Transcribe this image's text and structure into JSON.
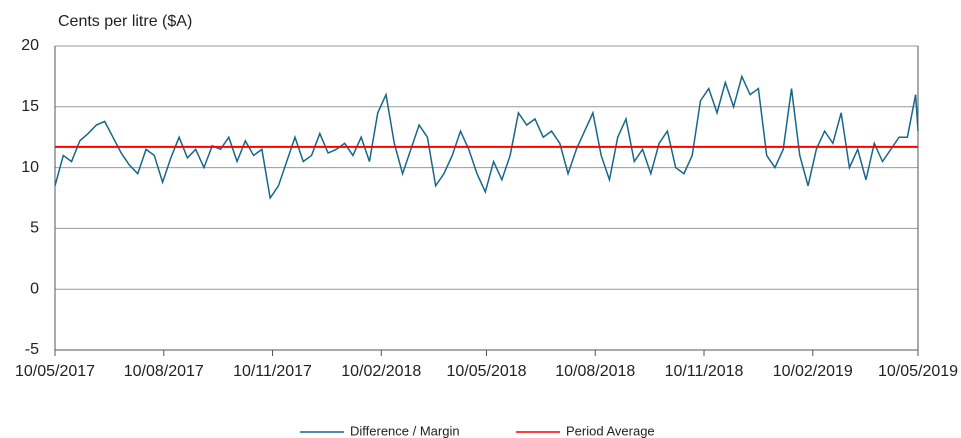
{
  "chart_data": {
    "type": "line",
    "y_label": "Cents per litre ($A)",
    "ylim": [
      -5,
      20
    ],
    "yticks": [
      -5,
      0,
      5,
      10,
      15,
      20
    ],
    "xlim": [
      "10/05/2017",
      "10/05/2019"
    ],
    "xticks": [
      "10/05/2017",
      "10/08/2017",
      "10/11/2017",
      "10/02/2018",
      "10/05/2018",
      "10/08/2018",
      "10/11/2018",
      "10/02/2019",
      "10/05/2019"
    ],
    "grid": true,
    "legend": "bottom",
    "x": [
      "10/05/2017",
      "17/05/2017",
      "24/05/2017",
      "31/05/2017",
      "07/06/2017",
      "14/06/2017",
      "21/06/2017",
      "28/06/2017",
      "05/07/2017",
      "12/07/2017",
      "19/07/2017",
      "26/07/2017",
      "02/08/2017",
      "09/08/2017",
      "16/08/2017",
      "23/08/2017",
      "30/08/2017",
      "06/09/2017",
      "13/09/2017",
      "20/09/2017",
      "27/09/2017",
      "04/10/2017",
      "11/10/2017",
      "18/10/2017",
      "25/10/2017",
      "01/11/2017",
      "08/11/2017",
      "15/11/2017",
      "22/11/2017",
      "29/11/2017",
      "06/12/2017",
      "13/12/2017",
      "20/12/2017",
      "27/12/2017",
      "03/01/2018",
      "10/01/2018",
      "17/01/2018",
      "24/01/2018",
      "31/01/2018",
      "07/02/2018",
      "14/02/2018",
      "21/02/2018",
      "28/02/2018",
      "07/03/2018",
      "14/03/2018",
      "21/03/2018",
      "28/03/2018",
      "04/04/2018",
      "11/04/2018",
      "18/04/2018",
      "25/04/2018",
      "02/05/2018",
      "09/05/2018",
      "16/05/2018",
      "23/05/2018",
      "30/05/2018",
      "06/06/2018",
      "13/06/2018",
      "20/06/2018",
      "27/06/2018",
      "04/07/2018",
      "11/07/2018",
      "18/07/2018",
      "25/07/2018",
      "01/08/2018",
      "08/08/2018",
      "15/08/2018",
      "22/08/2018",
      "29/08/2018",
      "05/09/2018",
      "12/09/2018",
      "19/09/2018",
      "26/09/2018",
      "03/10/2018",
      "10/10/2018",
      "17/10/2018",
      "24/10/2018",
      "31/10/2018",
      "07/11/2018",
      "14/11/2018",
      "21/11/2018",
      "28/11/2018",
      "05/12/2018",
      "12/12/2018",
      "19/12/2018",
      "26/12/2018",
      "02/01/2019",
      "09/01/2019",
      "16/01/2019",
      "23/01/2019",
      "30/01/2019",
      "06/02/2019",
      "13/02/2019",
      "20/02/2019",
      "27/02/2019",
      "06/03/2019",
      "13/03/2019",
      "20/03/2019",
      "27/03/2019",
      "03/04/2019",
      "10/04/2019",
      "17/04/2019",
      "24/04/2019",
      "01/05/2019",
      "08/05/2019",
      "10/05/2019"
    ],
    "series": [
      {
        "name": "Difference / Margin",
        "color": "#17678a",
        "values": [
          8.5,
          11,
          10.5,
          12.2,
          12.8,
          13.5,
          13.8,
          12.5,
          11.2,
          10.2,
          9.5,
          11.5,
          11,
          8.8,
          10.8,
          12.5,
          10.8,
          11.5,
          10,
          11.8,
          11.5,
          12.5,
          10.5,
          12.2,
          11,
          11.5,
          7.5,
          8.5,
          10.5,
          12.5,
          10.5,
          11,
          12.8,
          11.2,
          11.5,
          12,
          11,
          12.5,
          10.5,
          14.5,
          16,
          12,
          9.5,
          11.5,
          13.5,
          12.5,
          8.5,
          9.5,
          11,
          13,
          11.5,
          9.5,
          8,
          10.5,
          9,
          11,
          14.5,
          13.5,
          14,
          12.5,
          13,
          12,
          9.5,
          11.5,
          13,
          14.5,
          11,
          9,
          12.5,
          14,
          10.5,
          11.5,
          9.5,
          12,
          13,
          10,
          9.5,
          11,
          15.5,
          16.5,
          14.5,
          17,
          15,
          17.5,
          16,
          16.5,
          11,
          10,
          11.5,
          16.5,
          11,
          8.5,
          11.5,
          13,
          12,
          14.5,
          10,
          11.5,
          9,
          12,
          10.5,
          11.5,
          12.5,
          12.5,
          16,
          13
        ]
      },
      {
        "name": "Period Average",
        "color": "#ff0000",
        "value": 11.7
      }
    ]
  }
}
